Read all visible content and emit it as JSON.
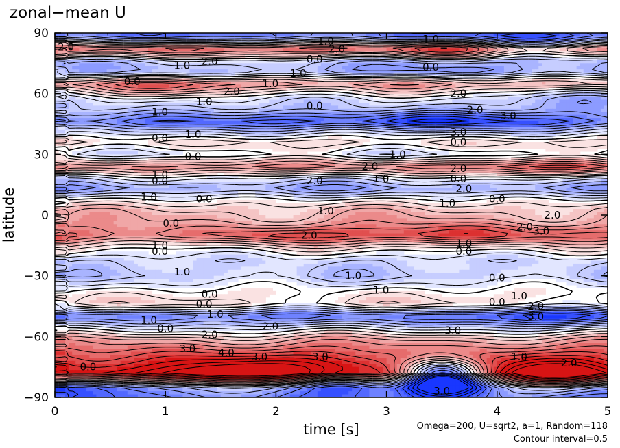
{
  "chart_data": {
    "type": "heatmap",
    "title": "zonal−mean U",
    "xlabel": "time [s]",
    "ylabel": "latitude",
    "xlim": [
      0,
      5
    ],
    "ylim": [
      -90,
      90
    ],
    "x_ticks": [
      "0",
      "1",
      "2",
      "3",
      "4",
      "5"
    ],
    "y_ticks": [
      "90",
      "60",
      "30",
      "0",
      "−30",
      "−60",
      "−90"
    ],
    "footnotes": [
      "Omega=200, U=sqrt2, a=1, Random=118",
      "Contour interval=0.5"
    ],
    "contour_labels": [
      {
        "text": "2.0",
        "t": 0.1,
        "lat": 83
      },
      {
        "text": "1.0",
        "t": 2.45,
        "lat": 86
      },
      {
        "text": "2.0",
        "t": 2.55,
        "lat": 82
      },
      {
        "text": "1.0",
        "t": 3.4,
        "lat": 87
      },
      {
        "text": "0.0",
        "t": 2.35,
        "lat": 77
      },
      {
        "text": "1.0",
        "t": 1.15,
        "lat": 74
      },
      {
        "text": "2.0",
        "t": 1.4,
        "lat": 76
      },
      {
        "text": "1.0",
        "t": 2.2,
        "lat": 70
      },
      {
        "text": "0.0",
        "t": 3.4,
        "lat": 73
      },
      {
        "text": "0.0",
        "t": 0.7,
        "lat": 66
      },
      {
        "text": "1.0",
        "t": 1.95,
        "lat": 65
      },
      {
        "text": "2.0",
        "t": 1.6,
        "lat": 61
      },
      {
        "text": "1.0",
        "t": 1.35,
        "lat": 56
      },
      {
        "text": "0.0",
        "t": 2.35,
        "lat": 54
      },
      {
        "text": "2.0",
        "t": 3.65,
        "lat": 60
      },
      {
        "text": "2.0",
        "t": 3.8,
        "lat": 52
      },
      {
        "text": "1.0",
        "t": 0.95,
        "lat": 51
      },
      {
        "text": "3.0",
        "t": 4.1,
        "lat": 49
      },
      {
        "text": "1.0",
        "t": 1.25,
        "lat": 40
      },
      {
        "text": "0.0",
        "t": 0.95,
        "lat": 38
      },
      {
        "text": "3.0",
        "t": 3.65,
        "lat": 41
      },
      {
        "text": "0.0",
        "t": 3.65,
        "lat": 36
      },
      {
        "text": "0.0",
        "t": 1.25,
        "lat": 29
      },
      {
        "text": "1.0",
        "t": 3.1,
        "lat": 30
      },
      {
        "text": "2.0",
        "t": 2.85,
        "lat": 24
      },
      {
        "text": "2.0",
        "t": 3.65,
        "lat": 23
      },
      {
        "text": "1.0",
        "t": 0.95,
        "lat": 20
      },
      {
        "text": "0.0",
        "t": 0.95,
        "lat": 17
      },
      {
        "text": "2.0",
        "t": 2.35,
        "lat": 17
      },
      {
        "text": "1.0",
        "t": 2.95,
        "lat": 18
      },
      {
        "text": "0.0",
        "t": 3.65,
        "lat": 18
      },
      {
        "text": "1.0",
        "t": 0.85,
        "lat": 9
      },
      {
        "text": "0.0",
        "t": 1.35,
        "lat": 8
      },
      {
        "text": "2.0",
        "t": 3.7,
        "lat": 13
      },
      {
        "text": "1.0",
        "t": 3.55,
        "lat": 6
      },
      {
        "text": "0.0",
        "t": 4.0,
        "lat": 8
      },
      {
        "text": "1.0",
        "t": 2.45,
        "lat": 2
      },
      {
        "text": "2.0",
        "t": 4.5,
        "lat": 0
      },
      {
        "text": "0.0",
        "t": 1.05,
        "lat": -4
      },
      {
        "text": "2.0",
        "t": 4.25,
        "lat": -6
      },
      {
        "text": "3.0",
        "t": 4.4,
        "lat": -8
      },
      {
        "text": "2.0",
        "t": 2.3,
        "lat": -10
      },
      {
        "text": "1.0",
        "t": 0.95,
        "lat": -15
      },
      {
        "text": "0.0",
        "t": 0.95,
        "lat": -18
      },
      {
        "text": "1.0",
        "t": 3.7,
        "lat": -14
      },
      {
        "text": "0.0",
        "t": 3.7,
        "lat": -18
      },
      {
        "text": "1.0",
        "t": 1.15,
        "lat": -28
      },
      {
        "text": "1.0",
        "t": 2.7,
        "lat": -30
      },
      {
        "text": "0.0",
        "t": 4.0,
        "lat": -31
      },
      {
        "text": "1.0",
        "t": 2.95,
        "lat": -37
      },
      {
        "text": "0.0",
        "t": 1.4,
        "lat": -39
      },
      {
        "text": "0.0",
        "t": 1.35,
        "lat": -44
      },
      {
        "text": "1.0",
        "t": 4.2,
        "lat": -40
      },
      {
        "text": "0.0",
        "t": 4.0,
        "lat": -43
      },
      {
        "text": "2.0",
        "t": 4.35,
        "lat": -45
      },
      {
        "text": "1.0",
        "t": 1.45,
        "lat": -49
      },
      {
        "text": "3.0",
        "t": 4.35,
        "lat": -50
      },
      {
        "text": "1.0",
        "t": 0.85,
        "lat": -52
      },
      {
        "text": "0.0",
        "t": 1.0,
        "lat": -56
      },
      {
        "text": "2.0",
        "t": 1.95,
        "lat": -55
      },
      {
        "text": "2.0",
        "t": 1.4,
        "lat": -59
      },
      {
        "text": "3.0",
        "t": 3.6,
        "lat": -57
      },
      {
        "text": "3.0",
        "t": 1.2,
        "lat": -66
      },
      {
        "text": "4.0",
        "t": 1.55,
        "lat": -68
      },
      {
        "text": "3.0",
        "t": 1.85,
        "lat": -70
      },
      {
        "text": "3.0",
        "t": 2.4,
        "lat": -70
      },
      {
        "text": "0.0",
        "t": 0.3,
        "lat": -75
      },
      {
        "text": "1.0",
        "t": 4.2,
        "lat": -70
      },
      {
        "text": "2.0",
        "t": 4.65,
        "lat": -73
      },
      {
        "text": "3.0",
        "t": 3.5,
        "lat": -87
      }
    ]
  }
}
